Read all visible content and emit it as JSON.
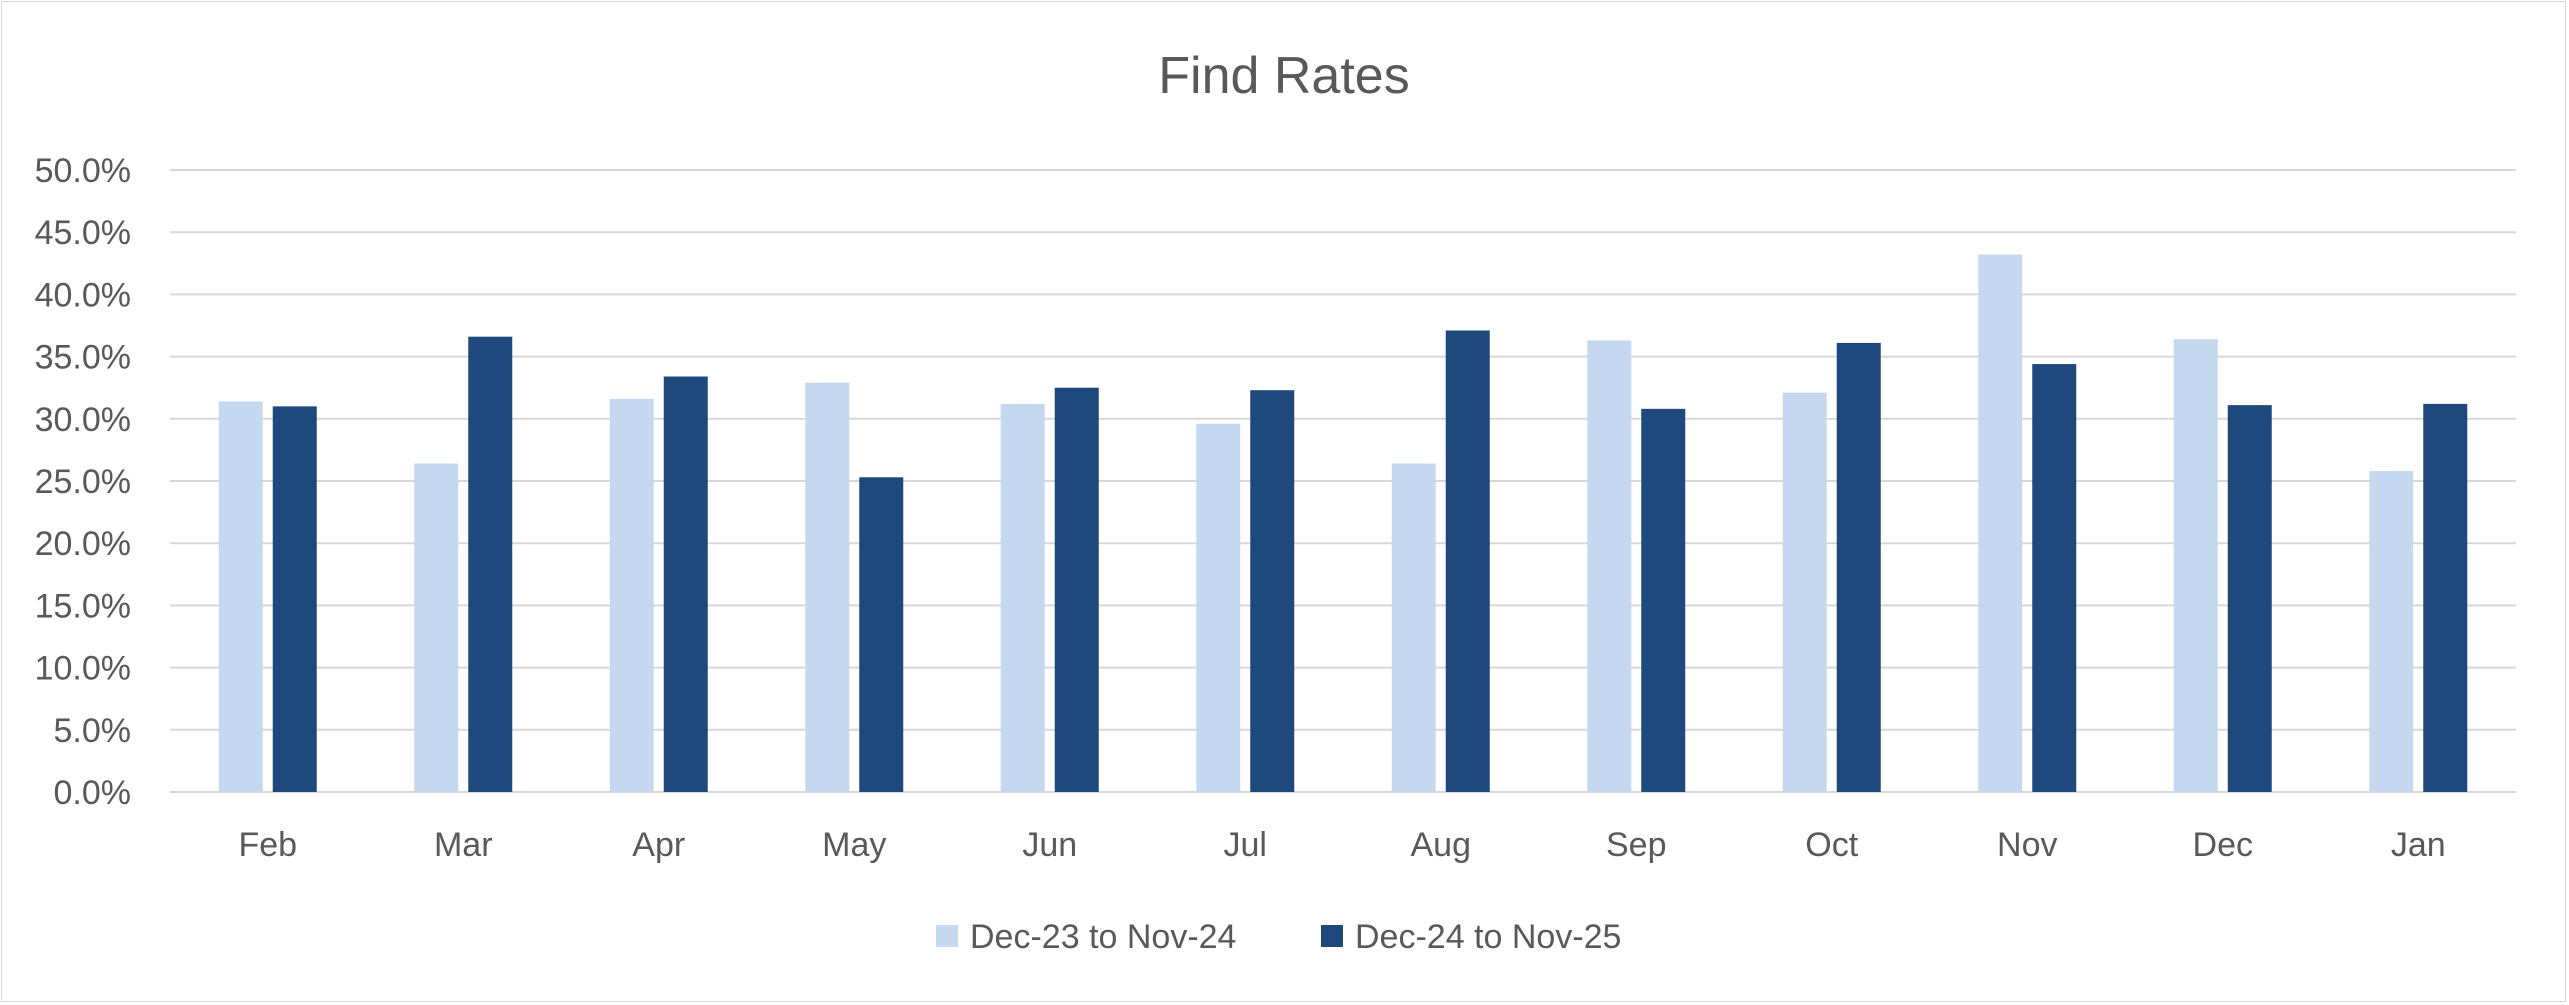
{
  "chart_data": {
    "type": "bar",
    "title": "Find Rates",
    "xlabel": "",
    "ylabel": "",
    "categories": [
      "Feb",
      "Mar",
      "Apr",
      "May",
      "Jun",
      "Jul",
      "Aug",
      "Sep",
      "Oct",
      "Nov",
      "Dec",
      "Jan"
    ],
    "series": [
      {
        "name": "Dec-23 to Nov-24",
        "color": "#c5d8f0",
        "values": [
          31.4,
          26.4,
          31.6,
          32.9,
          31.2,
          29.6,
          26.4,
          36.3,
          32.1,
          43.2,
          36.4,
          25.8
        ]
      },
      {
        "name": "Dec-24 to Nov-25",
        "color": "#1f497d",
        "values": [
          31.0,
          36.6,
          33.4,
          25.3,
          32.5,
          32.3,
          37.1,
          30.8,
          36.1,
          34.4,
          31.1,
          31.2
        ]
      }
    ],
    "ylim": [
      0,
      50
    ],
    "yticks": [
      "0.0%",
      "5.0%",
      "10.0%",
      "15.0%",
      "20.0%",
      "25.0%",
      "30.0%",
      "35.0%",
      "40.0%",
      "45.0%",
      "50.0%"
    ],
    "grid": true,
    "legend_position": "bottom"
  }
}
